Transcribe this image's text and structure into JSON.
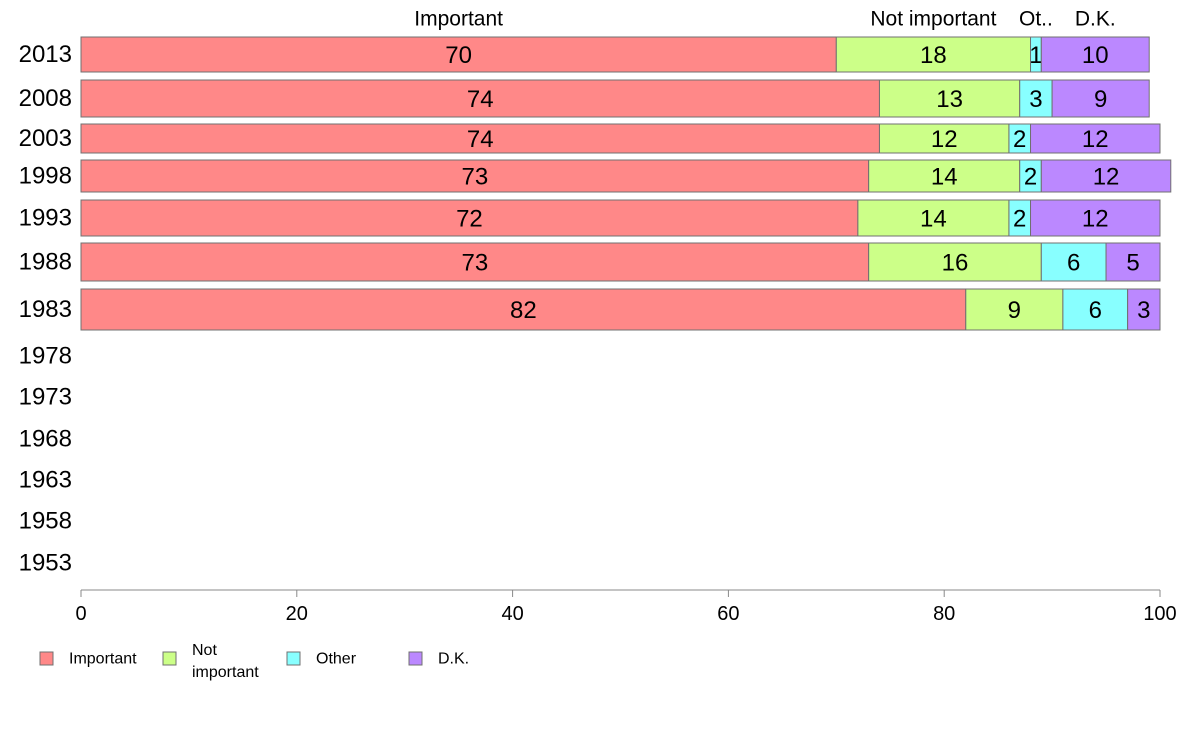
{
  "chart_data": {
    "type": "bar",
    "orientation": "horizontal",
    "stacked": true,
    "categories": [
      "2013",
      "2008",
      "2003",
      "1998",
      "1993",
      "1988",
      "1983",
      "1978",
      "1973",
      "1968",
      "1963",
      "1958",
      "1953"
    ],
    "series": [
      {
        "name": "Important",
        "color": "#ff8888",
        "values": [
          70,
          74,
          74,
          73,
          72,
          73,
          82,
          null,
          null,
          null,
          null,
          null,
          null
        ]
      },
      {
        "name": "Not important",
        "legend_label": "Not\nimportant",
        "color": "#ccff88",
        "values": [
          18,
          13,
          12,
          14,
          14,
          16,
          9,
          null,
          null,
          null,
          null,
          null,
          null
        ]
      },
      {
        "name": "Other",
        "header_label": "Ot..",
        "color": "#88ffff",
        "values": [
          1,
          3,
          2,
          2,
          2,
          6,
          6,
          null,
          null,
          null,
          null,
          null,
          null
        ]
      },
      {
        "name": "D.K.",
        "color": "#bb88ff",
        "values": [
          10,
          9,
          12,
          12,
          12,
          5,
          3,
          null,
          null,
          null,
          null,
          null,
          null
        ]
      }
    ],
    "xlim": [
      0,
      100
    ],
    "xticks": [
      0,
      20,
      40,
      60,
      80,
      100
    ],
    "grid": false,
    "legend": "bottom-left",
    "column_headers": "top"
  }
}
